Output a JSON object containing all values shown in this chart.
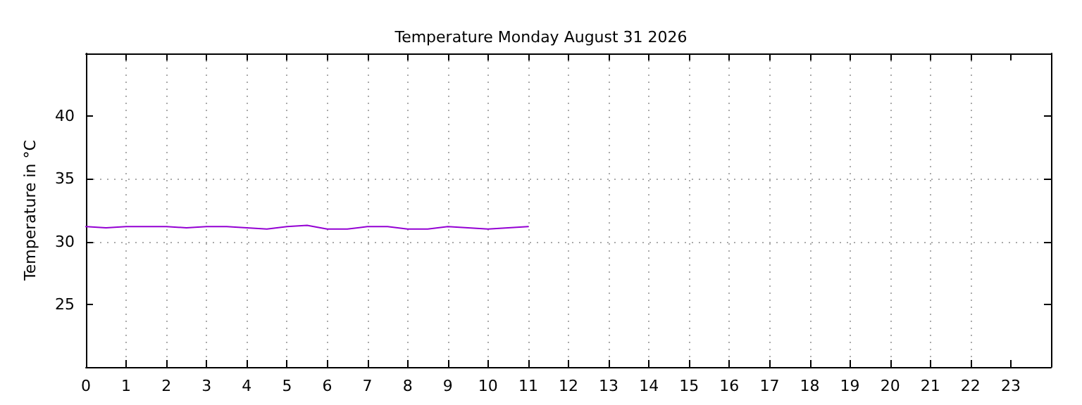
{
  "chart_data": {
    "type": "line",
    "title": "Temperature Monday August 31 2026",
    "ylabel": "Temperature in °C",
    "x": [
      0,
      0.5,
      1,
      1.5,
      2,
      2.5,
      3,
      3.5,
      4,
      4.5,
      5,
      5.5,
      6,
      6.5,
      7,
      7.5,
      8,
      8.5,
      9,
      9.5,
      10,
      10.5,
      11
    ],
    "series": [
      {
        "color": "#9400d3",
        "values": [
          31.2,
          31.1,
          31.2,
          31.2,
          31.2,
          31.1,
          31.2,
          31.2,
          31.1,
          31.0,
          31.2,
          31.3,
          31.0,
          31.0,
          31.2,
          31.2,
          31.0,
          31.0,
          31.2,
          31.1,
          31.0,
          31.1,
          31.2
        ]
      }
    ],
    "xlim": [
      0,
      24
    ],
    "xticks": [
      0,
      1,
      2,
      3,
      4,
      5,
      6,
      7,
      8,
      9,
      10,
      11,
      12,
      13,
      14,
      15,
      16,
      17,
      18,
      19,
      20,
      21,
      22,
      23
    ],
    "ylim": [
      20,
      45
    ],
    "yticks": [
      25,
      30,
      35,
      40
    ],
    "grid": true,
    "marker": "none",
    "line_style": "solid"
  }
}
